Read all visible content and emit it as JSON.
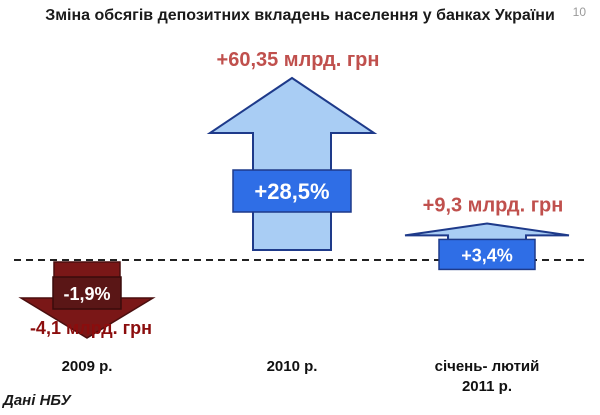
{
  "page": {
    "title": "Зміна обсягів депозитних вкладень населення у банках України",
    "page_number": "10",
    "source": "Дані НБУ"
  },
  "colors": {
    "up_fill": "#a9cdf4",
    "up_stroke": "#1e3a8a",
    "down_fill": "#7a1717",
    "down_box": "#5a1616",
    "pct_box": "#2f6ee6",
    "value_label_up": "#c0504d",
    "value_label_down": "#8b0d0d"
  },
  "chart_data": {
    "type": "bar",
    "categories": [
      "2009 р.",
      "2010 р.",
      "січень- лютий 2011 р."
    ],
    "category_lines": [
      [
        "2009 р."
      ],
      [
        "2010 р."
      ],
      [
        "січень- лютий",
        "2011 р."
      ]
    ],
    "values": [
      -4.1,
      60.35,
      9.3
    ],
    "percent_change": [
      -1.9,
      28.5,
      3.4
    ],
    "value_labels": [
      "-4,1 млрд. грн",
      "+60,35 млрд. грн",
      "+9,3 млрд. грн"
    ],
    "percent_labels": [
      "-1,9%",
      "+28,5%",
      "+3,4%"
    ],
    "unit": "млрд. грн",
    "baseline": 0,
    "grid": false
  }
}
